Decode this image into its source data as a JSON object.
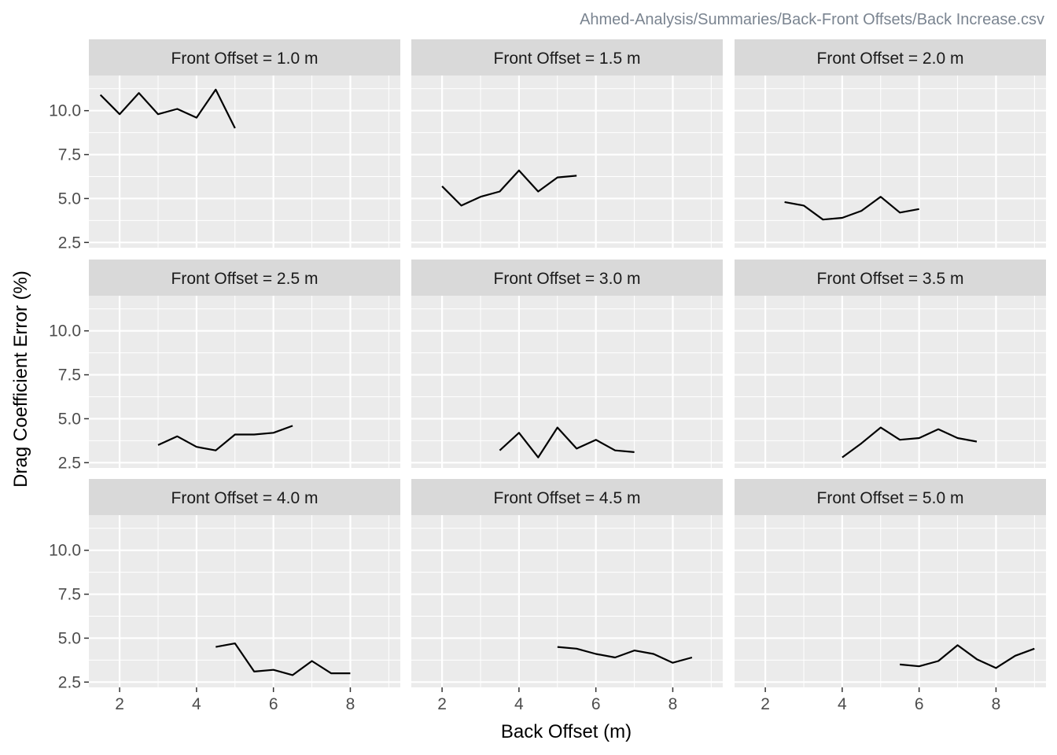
{
  "caption": "Ahmed-Analysis/Summaries/Back-Front Offsets/Back Increase.csv",
  "chart_data": {
    "type": "line",
    "layout": "facet_wrap 3x3",
    "xlabel": "Back Offset (m)",
    "ylabel": "Drag Coefficient Error (%)",
    "xlim": [
      1.2,
      9.3
    ],
    "ylim": [
      2.2,
      12.0
    ],
    "x_ticks": [
      2,
      4,
      6,
      8
    ],
    "x_tick_labels": [
      "2",
      "4",
      "6",
      "8"
    ],
    "y_ticks": [
      2.5,
      5.0,
      7.5,
      10.0
    ],
    "y_tick_labels": [
      "2.5",
      "5.0",
      "7.5",
      "10.0"
    ],
    "grid": true,
    "line_color": "#000000",
    "panel_background": "#ebebeb",
    "strip_background": "#d9d9d9",
    "panels": [
      {
        "label": "Front Offset = 1.0 m",
        "x": [
          1.5,
          2.0,
          2.5,
          3.0,
          3.5,
          4.0,
          4.5,
          5.0
        ],
        "y": [
          10.9,
          9.8,
          11.0,
          9.8,
          10.1,
          9.6,
          11.2,
          9.0
        ]
      },
      {
        "label": "Front Offset = 1.5 m",
        "x": [
          2.0,
          2.5,
          3.0,
          3.5,
          4.0,
          4.5,
          5.0,
          5.5
        ],
        "y": [
          5.7,
          4.6,
          5.1,
          5.4,
          6.6,
          5.4,
          6.2,
          6.3
        ]
      },
      {
        "label": "Front Offset = 2.0 m",
        "x": [
          2.5,
          3.0,
          3.5,
          4.0,
          4.5,
          5.0,
          5.5,
          6.0
        ],
        "y": [
          4.8,
          4.6,
          3.8,
          3.9,
          4.3,
          5.1,
          4.2,
          4.4
        ]
      },
      {
        "label": "Front Offset = 2.5 m",
        "x": [
          3.0,
          3.5,
          4.0,
          4.5,
          5.0,
          5.5,
          6.0,
          6.5
        ],
        "y": [
          3.5,
          4.0,
          3.4,
          3.2,
          4.1,
          4.1,
          4.2,
          4.6
        ]
      },
      {
        "label": "Front Offset = 3.0 m",
        "x": [
          3.5,
          4.0,
          4.5,
          5.0,
          5.5,
          6.0,
          6.5,
          7.0
        ],
        "y": [
          3.2,
          4.2,
          2.8,
          4.5,
          3.3,
          3.8,
          3.2,
          3.1
        ]
      },
      {
        "label": "Front Offset = 3.5 m",
        "x": [
          4.0,
          4.5,
          5.0,
          5.5,
          6.0,
          6.5,
          7.0,
          7.5
        ],
        "y": [
          2.8,
          3.6,
          4.5,
          3.8,
          3.9,
          4.4,
          3.9,
          3.7
        ]
      },
      {
        "label": "Front Offset = 4.0 m",
        "x": [
          4.5,
          5.0,
          5.5,
          6.0,
          6.5,
          7.0,
          7.5,
          8.0
        ],
        "y": [
          4.5,
          4.7,
          3.1,
          3.2,
          2.9,
          3.7,
          3.0,
          3.0
        ]
      },
      {
        "label": "Front Offset = 4.5 m",
        "x": [
          5.0,
          5.5,
          6.0,
          6.5,
          7.0,
          7.5,
          8.0,
          8.5
        ],
        "y": [
          4.5,
          4.4,
          4.1,
          3.9,
          4.3,
          4.1,
          3.6,
          3.9
        ]
      },
      {
        "label": "Front Offset = 5.0 m",
        "x": [
          5.5,
          6.0,
          6.5,
          7.0,
          7.5,
          8.0,
          8.5,
          9.0
        ],
        "y": [
          3.5,
          3.4,
          3.7,
          4.6,
          3.8,
          3.3,
          4.0,
          4.4
        ]
      }
    ]
  }
}
